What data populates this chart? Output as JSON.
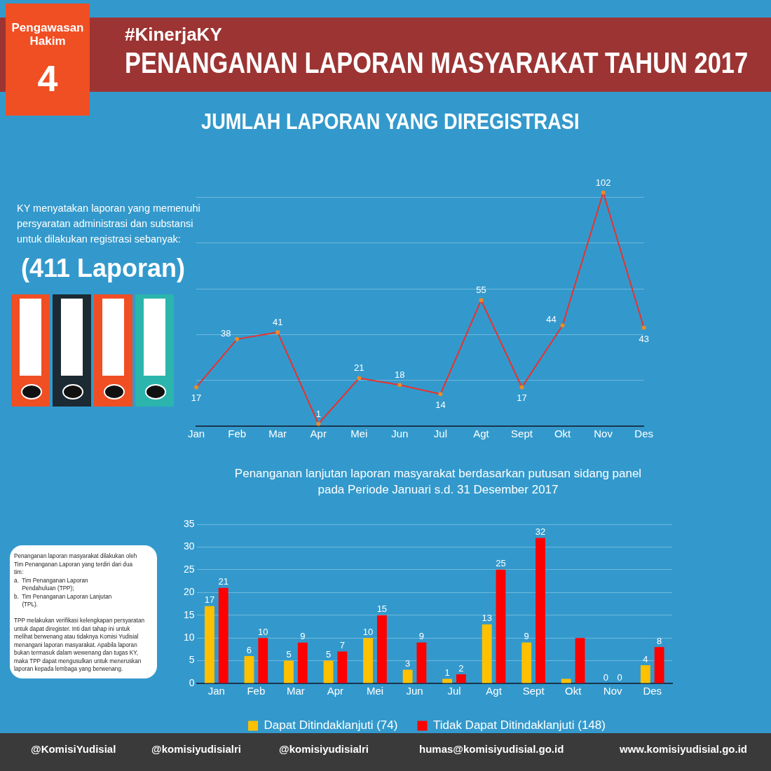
{
  "chart_data": [
    {
      "type": "line",
      "title": "JUMLAH LAPORAN YANG DIREGISTRASI",
      "categories": [
        "Jan",
        "Feb",
        "Mar",
        "Apr",
        "Mei",
        "Jun",
        "Jul",
        "Agt",
        "Sept",
        "Okt",
        "Nov",
        "Des"
      ],
      "series": [
        {
          "color": "#e8322c",
          "values": [
            17,
            38,
            41,
            1,
            21,
            18,
            14,
            55,
            17,
            44,
            102,
            43
          ]
        }
      ],
      "yticks": [
        {
          "value": 0,
          "label": null
        },
        {
          "value": 20,
          "label": null
        },
        {
          "value": 40,
          "label": null
        },
        {
          "value": 60,
          "label": null
        },
        {
          "value": 80,
          "label": null
        },
        {
          "value": 100,
          "label": null
        }
      ],
      "tick_labels": "x",
      "grid": "y",
      "marker": "circle",
      "data_labels": true,
      "legend": false,
      "annotations": [
        "Pengawasan Hakim",
        "4",
        "#KinerjaKY",
        "PENANGANAN LAPORAN MASYARAKAT TAHUN 2017",
        "KY menyatakan laporan yang memenuhi\npersyaratan administrasi dan substansi\nuntuk dilakukan registrasi sebanyak:",
        "(411 Laporan)"
      ]
    },
    {
      "type": "bar",
      "title": "Penanganan lanjutan laporan masyarakat berdasarkan putusan sidang panel\npada Periode Januari s.d. 31 Desember 2017",
      "categories": [
        "Jan",
        "Feb",
        "Mar",
        "Apr",
        "Mei",
        "Jun",
        "Jul",
        "Agt",
        "Sept",
        "Okt",
        "Nov",
        "Des"
      ],
      "series": [
        {
          "name": "Dapat Ditindaklanjuti (74)",
          "color": "#ffc000",
          "values": [
            17,
            6,
            5,
            5,
            10,
            3,
            1,
            13,
            9,
            1,
            0,
            4
          ],
          "value_labels": [
            "17",
            "6",
            "5",
            "5",
            "10",
            "3",
            "1",
            "13",
            "9",
            null,
            "0",
            "4"
          ]
        },
        {
          "name": "Tidak Dapat Ditindaklanjuti (148)",
          "color": "#ff0000",
          "values": [
            21,
            10,
            9,
            7,
            15,
            9,
            2,
            25,
            32,
            10,
            0,
            8
          ],
          "value_labels": [
            "21",
            "10",
            "9",
            "7",
            "15",
            "9",
            "2",
            "25",
            "32",
            null,
            "0",
            "8"
          ]
        }
      ],
      "ylim": [
        0,
        35
      ],
      "yticks": [
        0,
        5,
        10,
        15,
        20,
        25,
        30,
        35
      ],
      "grid": "y",
      "legend": "bottom",
      "annotations": [
        "Penanganan laporan masyarakat dilakukan oleh\nTim Penanganan Laporan yang terdiri dari dua\ntim:\na.  Tim Penanganan Laporan\n     Pendahuluan (TPP);\nb.  Tim Penanganan Laporan Lanjutan\n     (TPL).\n\nTPP melakukan verifikasi kelengkapan persyaratan\nuntuk dapat diregister. Inti dari tahap ini untuk\nmelihat berwenang atau tidaknya Komisi Yudisial\nmenangani laporan masyarakat. Apabila laporan\nbukan termasuk dalam wewenang dan tugas KY,\nmaka TPP dapat mengusulkan untuk meneruskan\nlaporan kepada lembaga yang berwenang.",
        "humas@komisiyudisial.go.id",
        "www.komisiyudisial.go.id",
        "@KomisiYudisial",
        "@komisiyudisialri",
        "@komisiyudisialri"
      ]
    }
  ]
}
